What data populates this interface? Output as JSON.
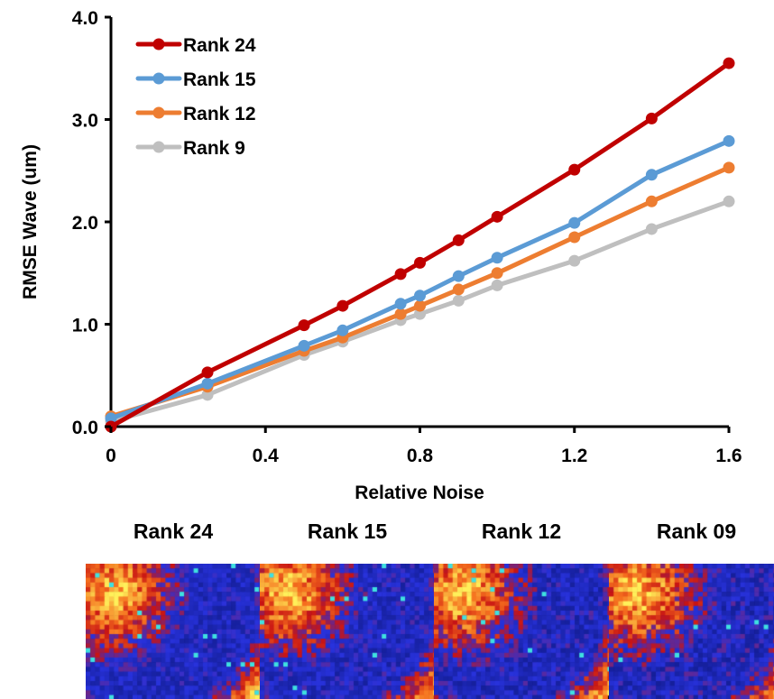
{
  "chart_data": {
    "type": "line",
    "xlabel": "Relative Noise",
    "ylabel": "RMSE Wave (um)",
    "xlim": [
      0,
      1.6
    ],
    "ylim": [
      0,
      4.0
    ],
    "x_ticks": [
      "0",
      "0.4",
      "0.8",
      "1.2",
      "1.6"
    ],
    "y_ticks": [
      "0.0",
      "1.0",
      "2.0",
      "3.0",
      "4.0"
    ],
    "legend_position": "top-left",
    "grid": false,
    "series": [
      {
        "name": "Rank 24",
        "color": "#c00000",
        "x": [
          0,
          0.25,
          0.5,
          0.6,
          0.75,
          0.8,
          0.9,
          1.0,
          1.2,
          1.4,
          1.6
        ],
        "y": [
          0.0,
          0.53,
          0.99,
          1.18,
          1.49,
          1.6,
          1.82,
          2.05,
          2.51,
          3.01,
          3.55
        ]
      },
      {
        "name": "Rank 15",
        "color": "#5b9bd5",
        "x": [
          0,
          0.25,
          0.5,
          0.6,
          0.75,
          0.8,
          0.9,
          1.0,
          1.2,
          1.4,
          1.6
        ],
        "y": [
          0.08,
          0.42,
          0.79,
          0.94,
          1.2,
          1.28,
          1.47,
          1.65,
          1.99,
          2.46,
          2.79
        ]
      },
      {
        "name": "Rank 12",
        "color": "#ed7d31",
        "x": [
          0,
          0.25,
          0.5,
          0.6,
          0.75,
          0.8,
          0.9,
          1.0,
          1.2,
          1.4,
          1.6
        ],
        "y": [
          0.1,
          0.39,
          0.74,
          0.87,
          1.1,
          1.18,
          1.34,
          1.5,
          1.85,
          2.2,
          2.53
        ]
      },
      {
        "name": "Rank 9",
        "color": "#bfbfbf",
        "x": [
          0,
          0.25,
          0.5,
          0.6,
          0.75,
          0.8,
          0.9,
          1.0,
          1.2,
          1.4,
          1.6
        ],
        "y": [
          0.05,
          0.31,
          0.7,
          0.83,
          1.04,
          1.1,
          1.23,
          1.38,
          1.62,
          1.93,
          2.2
        ]
      }
    ]
  },
  "maps": [
    {
      "title": "Rank 24"
    },
    {
      "title": "Rank 15"
    },
    {
      "title": "Rank 12"
    },
    {
      "title": "Rank 09"
    }
  ]
}
